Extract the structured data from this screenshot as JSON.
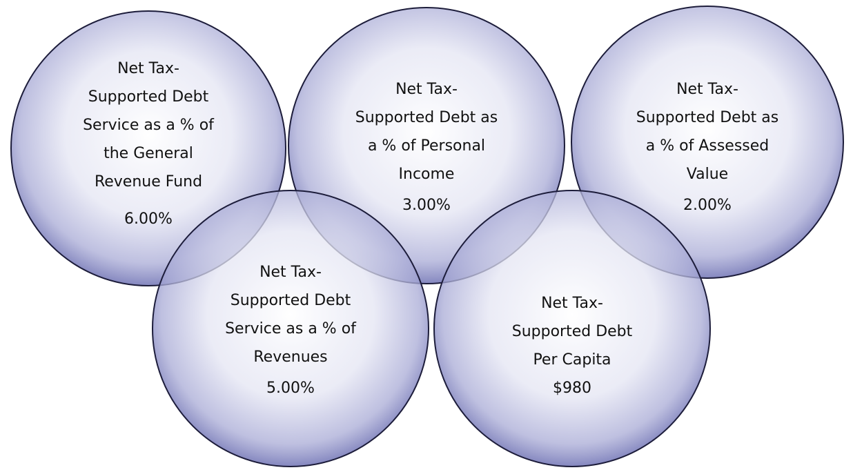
{
  "nodes": [
    {
      "label": [
        "Net Tax-",
        "Supported Debt",
        "Service as a % of",
        "the General",
        "Revenue Fund"
      ],
      "value": "6.00%"
    },
    {
      "label": [
        "Net Tax-",
        "Supported Debt as",
        "a % of Personal",
        "Income"
      ],
      "value": "3.00%"
    },
    {
      "label": [
        "Net Tax-",
        "Supported Debt as",
        "a % of Assessed",
        "Value"
      ],
      "value": "2.00%"
    },
    {
      "label": [
        "Net Tax-",
        "Supported Debt",
        "Service as a % of",
        "Revenues"
      ],
      "value": "5.00%"
    },
    {
      "label": [
        "Net Tax-",
        "Supported Debt",
        "Per Capita"
      ],
      "value": "$980"
    }
  ]
}
